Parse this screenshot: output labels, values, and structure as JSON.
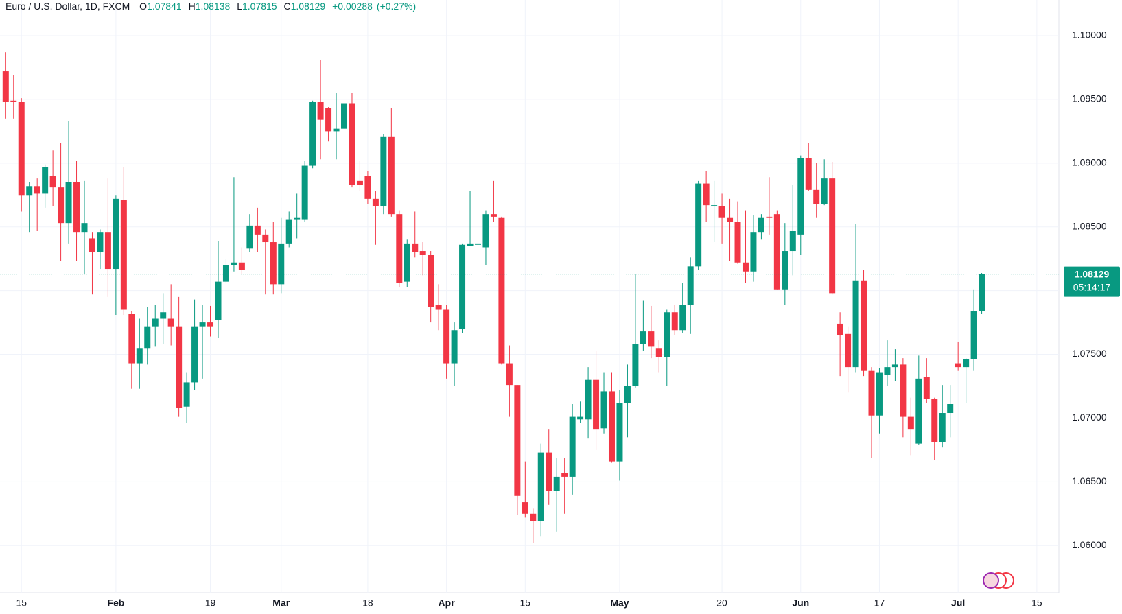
{
  "header": {
    "title": "Euro / U.S. Dollar, 1D, FXCM",
    "labels": [
      "O",
      "H",
      "L",
      "C"
    ],
    "change": "+0.00288",
    "change_pct": "(+0.27%)",
    "countdown": "05:14:17"
  },
  "chart_data": {
    "type": "candlestick",
    "up_color": "#089981",
    "down_color": "#f23645",
    "grid": true,
    "ylim": [
      1.0563,
      1.1028
    ],
    "yticks": [
      {
        "value": 1.06,
        "label": "1.06000"
      },
      {
        "value": 1.065,
        "label": "1.06500"
      },
      {
        "value": 1.07,
        "label": "1.07000"
      },
      {
        "value": 1.075,
        "label": "1.07500"
      },
      {
        "value": 1.08,
        "label": "1.08000"
      },
      {
        "value": 1.085,
        "label": "1.08500"
      },
      {
        "value": 1.09,
        "label": "1.09000"
      },
      {
        "value": 1.095,
        "label": "1.09500"
      },
      {
        "value": 1.1,
        "label": "1.10000"
      }
    ],
    "categories": [
      null,
      null,
      "15",
      null,
      null,
      null,
      null,
      null,
      null,
      null,
      null,
      null,
      null,
      null,
      "Feb",
      null,
      null,
      null,
      null,
      null,
      null,
      null,
      null,
      null,
      null,
      null,
      "19",
      null,
      null,
      null,
      null,
      null,
      null,
      null,
      null,
      "Mar",
      null,
      null,
      null,
      null,
      null,
      null,
      null,
      null,
      null,
      null,
      "18",
      null,
      null,
      null,
      null,
      null,
      null,
      null,
      null,
      null,
      "Apr",
      null,
      null,
      null,
      null,
      null,
      null,
      null,
      null,
      null,
      "15",
      null,
      null,
      null,
      null,
      null,
      null,
      null,
      null,
      null,
      null,
      null,
      "May",
      null,
      null,
      null,
      null,
      null,
      null,
      null,
      null,
      null,
      null,
      null,
      null,
      "20",
      null,
      null,
      null,
      null,
      null,
      null,
      null,
      null,
      null,
      "Jun",
      null,
      null,
      null,
      null,
      null,
      null,
      null,
      null,
      null,
      "17",
      null,
      null,
      null,
      null,
      null,
      null,
      null,
      null,
      null,
      "Jul",
      null,
      null,
      null,
      null,
      null,
      null,
      null,
      null,
      null,
      "15"
    ],
    "open": [
      1.0972,
      1.0949,
      1.0948,
      1.0875,
      1.0882,
      1.0876,
      1.089,
      1.0881,
      1.0853,
      1.0885,
      1.0846,
      1.0841,
      1.083,
      1.0846,
      1.0817,
      1.0871,
      1.0782,
      1.0743,
      1.0755,
      1.0772,
      1.0778,
      1.0778,
      1.0772,
      1.0709,
      1.0728,
      1.0772,
      1.0775,
      1.0777,
      1.0807,
      1.082,
      1.0822,
      1.0833,
      1.0851,
      1.0844,
      1.0838,
      1.0805,
      1.0837,
      1.0856,
      1.0856,
      1.0898,
      1.0948,
      1.0943,
      1.0925,
      1.0927,
      1.0947,
      1.0886,
      1.089,
      1.0872,
      1.0866,
      1.0921,
      1.086,
      1.0807,
      1.0837,
      1.0831,
      1.0828,
      1.0789,
      1.0785,
      1.0743,
      1.077,
      1.0835,
      1.0836,
      1.0834,
      1.086,
      1.0857,
      1.0743,
      1.0726,
      1.0634,
      1.0625,
      1.0619,
      1.0673,
      1.0643,
      1.0657,
      1.0654,
      1.0699,
      1.0699,
      1.073,
      1.0692,
      1.0721,
      1.0666,
      1.0712,
      1.0725,
      1.0758,
      1.0768,
      1.0755,
      1.0748,
      1.0783,
      1.0769,
      1.0789,
      1.0819,
      1.0884,
      1.0866,
      1.0866,
      1.0857,
      1.0854,
      1.0822,
      1.0815,
      1.0846,
      1.0858,
      1.086,
      1.0801,
      1.0831,
      1.0844,
      1.0904,
      1.0879,
      1.0868,
      1.0888,
      1.0774,
      1.0766,
      1.074,
      1.0808,
      1.0737,
      1.0702,
      1.0734,
      1.074,
      1.0742,
      1.0701,
      1.068,
      1.0732,
      1.0715,
      1.0681,
      1.0704,
      1.0743,
      1.074,
      1.0746,
      1.07841,
      null,
      null,
      null,
      null,
      null,
      null,
      null
    ],
    "high": [
      1.0987,
      1.0969,
      1.0951,
      1.0885,
      1.0888,
      1.0899,
      1.091,
      1.0916,
      1.0933,
      1.0902,
      1.0886,
      1.0846,
      1.0848,
      1.0888,
      1.0875,
      1.0897,
      1.0784,
      1.0778,
      1.0787,
      1.0789,
      1.0798,
      1.0805,
      1.0795,
      1.0736,
      1.0793,
      1.0789,
      1.0788,
      1.0839,
      1.0825,
      1.0889,
      1.0834,
      1.086,
      1.0865,
      1.0848,
      1.0854,
      1.0857,
      1.0862,
      1.0876,
      1.0902,
      1.0949,
      1.0981,
      1.0944,
      1.0955,
      1.0964,
      1.0955,
      1.0902,
      1.0894,
      1.0878,
      1.0923,
      1.0943,
      1.0863,
      1.084,
      1.0862,
      1.0838,
      1.0831,
      1.0805,
      1.0789,
      1.0775,
      1.0837,
      1.0878,
      1.0847,
      1.0863,
      1.0886,
      1.0858,
      1.0757,
      1.0726,
      1.0666,
      1.0629,
      1.068,
      1.0691,
      1.0669,
      1.0669,
      1.0711,
      1.0713,
      1.074,
      1.0753,
      1.0736,
      1.0736,
      1.0722,
      1.0742,
      1.0813,
      1.0792,
      1.0788,
      1.0761,
      1.0785,
      1.0789,
      1.0806,
      1.0826,
      1.0886,
      1.0894,
      1.0886,
      1.0876,
      1.0872,
      1.087,
      1.0863,
      1.0859,
      1.086,
      1.0889,
      1.0863,
      1.0853,
      1.0883,
      1.0906,
      1.0916,
      1.09,
      1.0903,
      1.0901,
      1.0783,
      1.0772,
      1.0852,
      1.0816,
      1.074,
      1.0739,
      1.0761,
      1.0754,
      1.0747,
      1.0716,
      1.0749,
      1.0747,
      1.0716,
      1.0726,
      1.0726,
      1.076,
      1.0747,
      1.0801,
      1.08138,
      null,
      null,
      null,
      null,
      null,
      null,
      null
    ],
    "low": [
      1.0935,
      1.0935,
      1.0862,
      1.0846,
      1.0847,
      1.0865,
      1.0866,
      1.0823,
      1.0837,
      1.0823,
      1.0813,
      1.0797,
      1.0817,
      1.0795,
      1.0781,
      1.0781,
      1.0723,
      1.0723,
      1.0742,
      1.0756,
      1.0758,
      1.0757,
      1.0701,
      1.0696,
      1.0722,
      1.0731,
      1.0764,
      1.0763,
      1.0806,
      1.0815,
      1.0813,
      1.083,
      1.083,
      1.0797,
      1.0797,
      1.0798,
      1.0834,
      1.0841,
      1.0854,
      1.0896,
      1.0903,
      1.0917,
      1.0903,
      1.0924,
      1.0881,
      1.0878,
      1.0868,
      1.0836,
      1.086,
      1.0858,
      1.0803,
      1.0803,
      1.0826,
      1.0812,
      1.0775,
      1.0769,
      1.0731,
      1.0725,
      1.0767,
      1.0835,
      1.0803,
      1.082,
      1.0854,
      1.0742,
      1.0701,
      1.0624,
      1.0622,
      1.0602,
      1.0607,
      1.0632,
      1.0611,
      1.0625,
      1.064,
      1.0696,
      1.0684,
      1.0675,
      1.0688,
      1.0665,
      1.0651,
      1.0685,
      1.0724,
      1.0753,
      1.0747,
      1.0736,
      1.0725,
      1.0765,
      1.0767,
      1.0766,
      1.0816,
      1.0854,
      1.0838,
      1.0837,
      1.0823,
      1.0821,
      1.0806,
      1.0807,
      1.084,
      1.0844,
      1.0801,
      1.0789,
      1.0812,
      1.0828,
      1.0878,
      1.0857,
      1.0867,
      1.0797,
      1.0733,
      1.072,
      1.0736,
      1.0733,
      1.0669,
      1.0688,
      1.0725,
      1.0729,
      1.0685,
      1.0671,
      1.0679,
      1.0712,
      1.0667,
      1.0677,
      1.0685,
      1.0737,
      1.0712,
      1.0737,
      1.07815,
      null,
      null,
      null,
      null,
      null,
      null,
      null
    ],
    "close": [
      1.0948,
      1.0948,
      1.0875,
      1.0882,
      1.0876,
      1.0897,
      1.0881,
      1.0853,
      1.0885,
      1.0846,
      1.0853,
      1.083,
      1.0846,
      1.0817,
      1.0872,
      1.0785,
      1.0743,
      1.0755,
      1.0772,
      1.0778,
      1.0783,
      1.0772,
      1.0708,
      1.0728,
      1.0772,
      1.0775,
      1.0772,
      1.0807,
      1.082,
      1.0822,
      1.0816,
      1.0851,
      1.0844,
      1.0838,
      1.0805,
      1.0837,
      1.0856,
      1.0857,
      1.0898,
      1.0948,
      1.0934,
      1.0925,
      1.0927,
      1.0947,
      1.0883,
      1.0883,
      1.0872,
      1.0866,
      1.0921,
      1.086,
      1.0806,
      1.0837,
      1.083,
      1.0828,
      1.0787,
      1.0785,
      1.0743,
      1.0769,
      1.0836,
      1.0837,
      1.0837,
      1.086,
      1.0858,
      1.0743,
      1.0726,
      1.0639,
      1.0625,
      1.0619,
      1.0673,
      1.0643,
      1.0654,
      1.0654,
      1.0701,
      1.0701,
      1.073,
      1.0691,
      1.0721,
      1.0666,
      1.0712,
      1.0725,
      1.0758,
      1.0768,
      1.0756,
      1.0748,
      1.0783,
      1.0769,
      1.0789,
      1.0819,
      1.0884,
      1.0867,
      1.0867,
      1.0857,
      1.0854,
      1.0822,
      1.0815,
      1.0846,
      1.0857,
      1.0857,
      1.0801,
      1.0831,
      1.0847,
      1.0904,
      1.0879,
      1.0868,
      1.0888,
      1.0798,
      1.0765,
      1.074,
      1.0808,
      1.0737,
      1.0702,
      1.0736,
      1.074,
      1.0742,
      1.0701,
      1.0691,
      1.0731,
      1.0715,
      1.0681,
      1.0704,
      1.0711,
      1.074,
      1.0746,
      1.0784,
      1.08129,
      null,
      null,
      null,
      null,
      null,
      null,
      null
    ]
  }
}
